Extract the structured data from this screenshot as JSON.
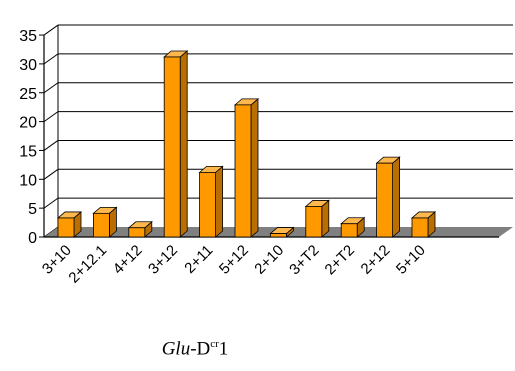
{
  "chart_data": {
    "type": "bar",
    "categories": [
      "3+10",
      "2+12.1",
      "4+12",
      "3+12",
      "2+11",
      "5+12",
      "2+10",
      "3+T2",
      "2+T2",
      "2+12",
      "5+10"
    ],
    "values": [
      3.3,
      4.1,
      1.6,
      31.2,
      11.2,
      22.9,
      0.6,
      5.3,
      2.3,
      12.8,
      3.3
    ],
    "ylim": [
      0,
      35
    ],
    "yticks": [
      0,
      5,
      10,
      15,
      20,
      25,
      30,
      35
    ],
    "grid": true,
    "colors": {
      "bar_front": "#FF9900",
      "bar_top": "#FFB84D",
      "bar_side": "#B86E00",
      "floor": "#808080"
    }
  },
  "caption": {
    "italic": "Glu",
    "base": "-D",
    "sup": "cr",
    "suffix": "1"
  }
}
